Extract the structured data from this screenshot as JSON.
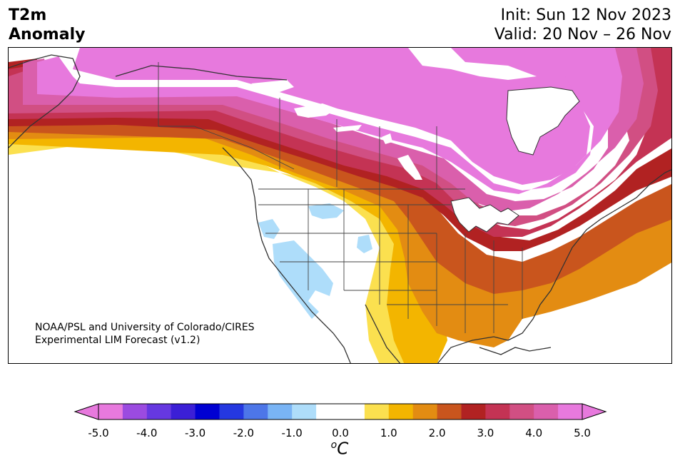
{
  "title": {
    "left_line1": "T2m",
    "left_line2": "Anomaly",
    "right_line1": "Init: Sun 12 Nov 2023",
    "right_line2": "Valid: 20 Nov – 26 Nov"
  },
  "credit": {
    "line1": "NOAA/PSL and University of Colorado/CIRES",
    "line2": "Experimental LIM Forecast (v1.2)"
  },
  "colorbar": {
    "ticks": [
      "-5.0",
      "-4.0",
      "-3.0",
      "-2.0",
      "-1.0",
      "0.0",
      "1.0",
      "2.0",
      "3.0",
      "4.0",
      "5.0"
    ],
    "unit_base": "C",
    "unit_sup": "o",
    "colors": [
      "#e779dd",
      "#9b4be0",
      "#6638e0",
      "#3b1fd6",
      "#0000d2",
      "#2538e0",
      "#4d76e8",
      "#79b4f5",
      "#aeddfa",
      "#ffffff",
      "#ffffff",
      "#fbe04f",
      "#f3b500",
      "#e38c12",
      "#c9551d",
      "#b12222",
      "#c43354",
      "#d14f83",
      "#da5fac",
      "#e779dd"
    ],
    "under_color": "#e779dd",
    "over_color": "#e779dd"
  },
  "map_colors": {
    "ocean": "#ffffff",
    "land_neutral": "#ffffff",
    "lake": "#ffffff",
    "coast_line": "#333333",
    "border_line": "#444444",
    "anom_5": "#e779dd",
    "anom_45": "#da5fac",
    "anom_4": "#d14f83",
    "anom_35": "#c43354",
    "anom_3": "#b12222",
    "anom_25": "#c9551d",
    "anom_2": "#e38c12",
    "anom_15": "#f3b500",
    "anom_1": "#fbe04f",
    "cool_1": "#aeddfa"
  }
}
